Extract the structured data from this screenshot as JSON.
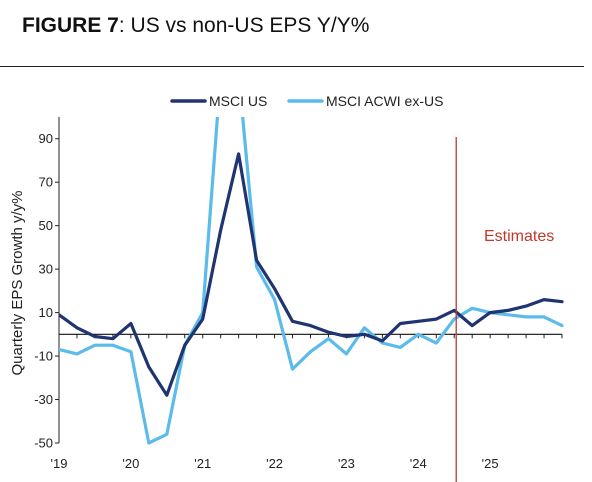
{
  "figure": {
    "label": "FIGURE 7",
    "title": ": US vs non-US EPS Y/Y%"
  },
  "chart_data": {
    "type": "line",
    "ylabel": "Quarterly EPS Growth y/y%",
    "xlabel": "",
    "ylim": [
      -50,
      100
    ],
    "yticks": [
      90,
      70,
      50,
      30,
      10,
      -10,
      -30,
      -50
    ],
    "ytick_labels": [
      "90",
      "70",
      "50",
      "30",
      "10",
      "-10",
      "-30",
      "-50"
    ],
    "xticks": [
      {
        "x": 0,
        "label": "'19"
      },
      {
        "x": 4,
        "label": "'20"
      },
      {
        "x": 8,
        "label": "'21"
      },
      {
        "x": 12,
        "label": "'22"
      },
      {
        "x": 16,
        "label": "'23"
      },
      {
        "x": 20,
        "label": "'24"
      },
      {
        "x": 24,
        "label": "'25"
      }
    ],
    "x_range": [
      0,
      28
    ],
    "series": [
      {
        "name": "MSCI US",
        "color": "#1f3470",
        "x": [
          0,
          1,
          2,
          3,
          4,
          5,
          6,
          7,
          8,
          9,
          10,
          11,
          12,
          13,
          14,
          15,
          16,
          17,
          18,
          19,
          20,
          21,
          22,
          23,
          24,
          25,
          26,
          27,
          28
        ],
        "values": [
          9,
          3,
          -1,
          -2,
          5,
          -15,
          -28,
          -5,
          7,
          48,
          83,
          34,
          21,
          6,
          4,
          1,
          -1,
          0,
          -3,
          5,
          6,
          7,
          11,
          4,
          10,
          11,
          13,
          16,
          15
        ]
      },
      {
        "name": "MSCI ACWI ex-US",
        "color": "#5bbbea",
        "x": [
          0,
          1,
          2,
          3,
          4,
          5,
          6,
          7,
          8,
          9,
          10,
          11,
          12,
          13,
          14,
          15,
          16,
          17,
          18,
          19,
          20,
          21,
          22,
          23,
          24,
          25,
          26,
          27,
          28
        ],
        "values": [
          -7,
          -9,
          -5,
          -5,
          -8,
          -50,
          -46,
          -5,
          10,
          120,
          120,
          31,
          16,
          -16,
          -8,
          -2,
          -9,
          3,
          -4,
          -6,
          0,
          -4,
          7,
          12,
          10,
          9,
          8,
          8,
          4
        ]
      }
    ],
    "legend": {
      "position": "top-center"
    },
    "vline": {
      "x": 22,
      "label": "Estimates",
      "color": "#c0392b"
    },
    "zero_line": 0,
    "grid": false
  }
}
